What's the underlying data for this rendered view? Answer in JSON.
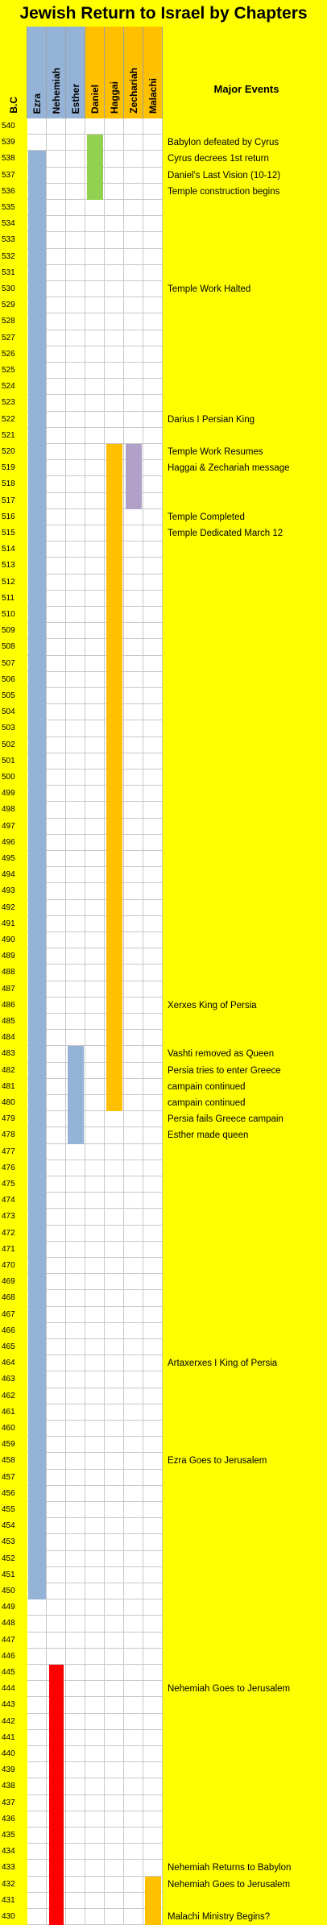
{
  "title": "Jewish Return to Israel by Chapters",
  "headers": {
    "year": "B.C",
    "books": [
      "Ezra",
      "Nehemiah",
      "Esther",
      "Daniel",
      "Haggai",
      "Zechariah",
      "Malachi"
    ],
    "events": "Major Events"
  },
  "colors": {
    "background": "#ffff00",
    "persian_group": "#95b3d7",
    "prophet_group": "#ffc000",
    "ezra": "#95b3d7",
    "nehemiah": "#ff0000",
    "esther": "#95b3d7",
    "daniel": "#92d050",
    "haggai": "#ffc000",
    "zechariah": "#b1a0c7",
    "malachi": "#ffc000",
    "cell": "#ffffff"
  },
  "years": [
    540,
    539,
    538,
    537,
    536,
    535,
    534,
    533,
    532,
    531,
    530,
    529,
    528,
    527,
    526,
    525,
    524,
    523,
    522,
    521,
    520,
    519,
    518,
    517,
    516,
    515,
    514,
    513,
    512,
    511,
    510,
    509,
    508,
    507,
    506,
    505,
    504,
    503,
    502,
    501,
    500,
    499,
    498,
    497,
    496,
    495,
    494,
    493,
    492,
    491,
    490,
    489,
    488,
    487,
    486,
    485,
    484,
    483,
    482,
    481,
    480,
    479,
    478,
    477,
    476,
    475,
    474,
    473,
    472,
    471,
    470,
    469,
    468,
    467,
    466,
    465,
    464,
    463,
    462,
    461,
    460,
    459,
    458,
    457,
    456,
    455,
    454,
    453,
    452,
    451,
    450,
    449,
    448,
    447,
    446,
    445,
    444,
    443,
    442,
    441,
    440,
    439,
    438,
    437,
    436,
    435,
    434,
    433,
    432,
    431,
    430
  ],
  "events": [
    {
      "year": 539,
      "text": "Babylon defeated by Cyrus"
    },
    {
      "year": 538,
      "text": "Cyrus decrees 1st return"
    },
    {
      "year": 537,
      "text": "Daniel's Last Vision (10-12)"
    },
    {
      "year": 536,
      "text": "Temple construction begins"
    },
    {
      "year": 530,
      "text": "Temple Work Halted"
    },
    {
      "year": 522,
      "text": "Darius I Persian King"
    },
    {
      "year": 520,
      "text": "Temple Work Resumes"
    },
    {
      "year": 519,
      "text": "Haggai & Zechariah message"
    },
    {
      "year": 516,
      "text": "Temple Completed"
    },
    {
      "year": 515,
      "text": "Temple Dedicated March 12"
    },
    {
      "year": 486,
      "text": "Xerxes King of Persia"
    },
    {
      "year": 483,
      "text": "Vashti removed as Queen"
    },
    {
      "year": 482,
      "text": "Persia tries to enter Greece"
    },
    {
      "year": 481,
      "text": "campain continued"
    },
    {
      "year": 480,
      "text": "campain continued"
    },
    {
      "year": 479,
      "text": "Persia fails Greece campain"
    },
    {
      "year": 478,
      "text": "Esther made queen"
    },
    {
      "year": 464,
      "text": "Artaxerxes I King of Persia"
    },
    {
      "year": 458,
      "text": "Ezra Goes to Jerusalem"
    },
    {
      "year": 444,
      "text": "Nehemiah Goes to Jerusalem"
    },
    {
      "year": 433,
      "text": "Nehemiah Returns to Babylon"
    },
    {
      "year": 432,
      "text": "Nehemiah Goes to Jerusalem"
    },
    {
      "year": 430,
      "text": "Malachi Ministry Begins?"
    }
  ],
  "spans": [
    {
      "book": "Ezra",
      "from": 538,
      "to": 450
    },
    {
      "book": "Nehemiah",
      "from": 445,
      "to": 430
    },
    {
      "book": "Esther",
      "from": 483,
      "to": 478
    },
    {
      "book": "Daniel",
      "from": 539,
      "to": 536
    },
    {
      "book": "Haggai",
      "from": 520,
      "to": 480
    },
    {
      "book": "Zechariah",
      "from": 520,
      "to": 517
    },
    {
      "book": "Malachi",
      "from": 432,
      "to": 430
    }
  ]
}
